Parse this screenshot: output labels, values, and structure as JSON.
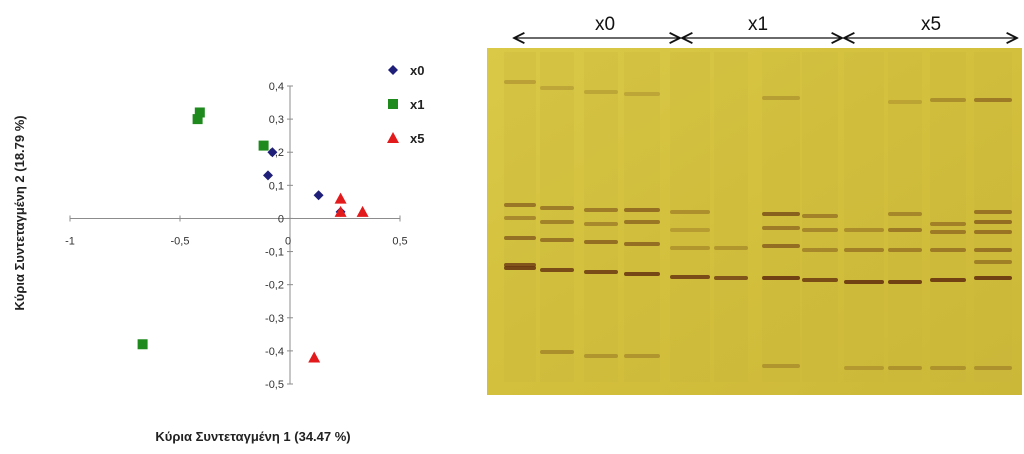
{
  "chart_data": {
    "type": "scatter",
    "xlabel": "Κύρια Συντεταγμένη 1 (34.47 %)",
    "ylabel": "Κύρια Συντεταγμένη 2 (18.79 %)",
    "xlim": [
      -1,
      0.5
    ],
    "ylim": [
      -0.5,
      0.4
    ],
    "x_ticks": [
      "-1",
      "-0,5",
      "0",
      "0,5"
    ],
    "y_ticks": [
      "0,4",
      "0,3",
      "0,2",
      "0,1",
      "0",
      "-0,1",
      "-0,2",
      "-0,3",
      "-0,4",
      "-0,5"
    ],
    "x_tick_values": [
      -1,
      -0.5,
      0,
      0.5
    ],
    "y_tick_values": [
      0.4,
      0.3,
      0.2,
      0.1,
      0,
      -0.1,
      -0.2,
      -0.3,
      -0.4,
      -0.5
    ],
    "legend_position": "top-right",
    "grid": false,
    "series": [
      {
        "name": "x0",
        "marker": "diamond",
        "color": "#1f1f7a",
        "points": [
          [
            -0.08,
            0.2
          ],
          [
            -0.1,
            0.13
          ],
          [
            0.13,
            0.07
          ],
          [
            0.23,
            0.02
          ]
        ]
      },
      {
        "name": "x1",
        "marker": "square",
        "color": "#1e8a1e",
        "points": [
          [
            -0.41,
            0.32
          ],
          [
            -0.42,
            0.3
          ],
          [
            -0.12,
            0.22
          ],
          [
            -0.67,
            -0.38
          ]
        ]
      },
      {
        "name": "x5",
        "marker": "triangle",
        "color": "#e31a1c",
        "points": [
          [
            0.23,
            0.06
          ],
          [
            0.23,
            0.02
          ],
          [
            0.33,
            0.02
          ],
          [
            0.11,
            -0.42
          ]
        ]
      }
    ]
  },
  "gel": {
    "groups": [
      "x0",
      "x1",
      "x5"
    ],
    "colors": {
      "background": "#d6c43c",
      "band": "#6b3a12",
      "arrow": "#111111"
    }
  }
}
